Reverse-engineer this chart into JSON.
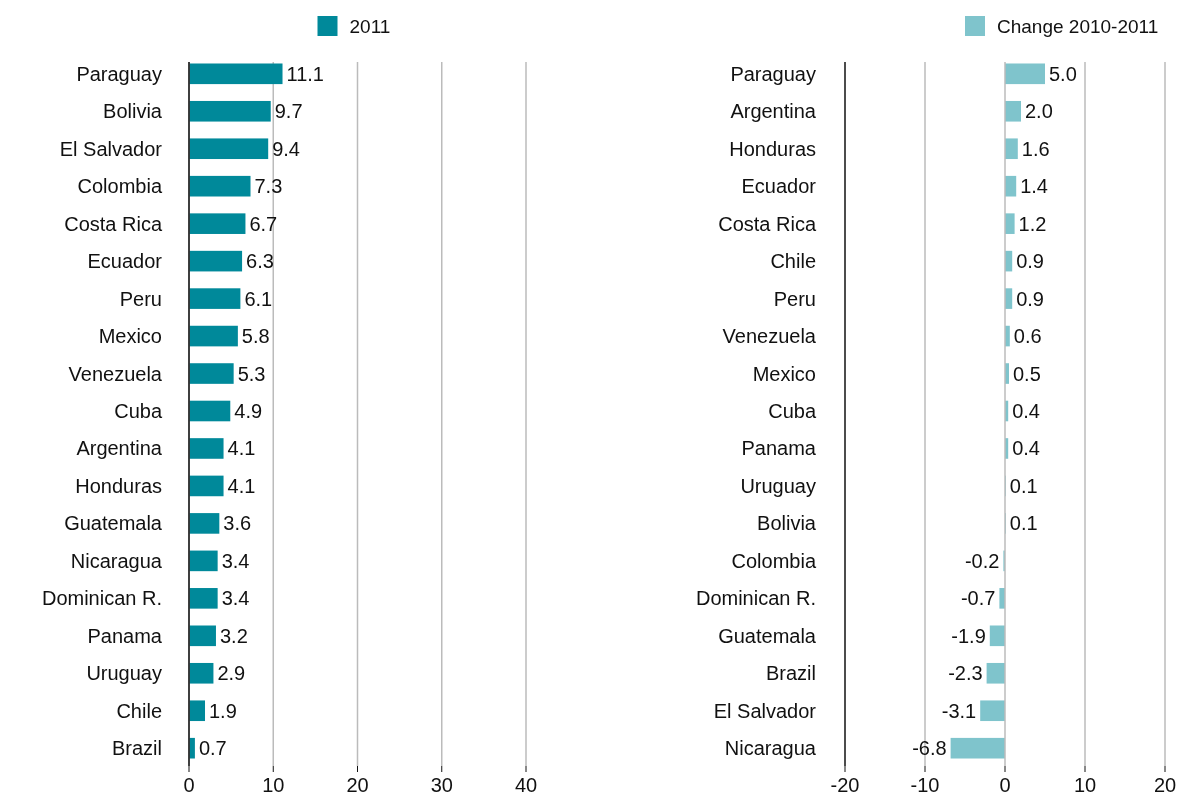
{
  "chart_data": [
    {
      "type": "bar",
      "orientation": "horizontal",
      "categories": [
        "Paraguay",
        "Bolivia",
        "El Salvador",
        "Colombia",
        "Costa Rica",
        "Ecuador",
        "Peru",
        "Mexico",
        "Venezuela",
        "Cuba",
        "Argentina",
        "Honduras",
        "Guatemala",
        "Nicaragua",
        "Dominican R.",
        "Panama",
        "Uruguay",
        "Chile",
        "Brazil"
      ],
      "series": [
        {
          "name": "2011",
          "color": "#00899a",
          "values": [
            11.1,
            9.7,
            9.4,
            7.3,
            6.7,
            6.3,
            6.1,
            5.8,
            5.3,
            4.9,
            4.1,
            4.1,
            3.6,
            3.4,
            3.4,
            3.2,
            2.9,
            1.9,
            0.7
          ]
        }
      ],
      "xlim": [
        0,
        40
      ],
      "xticks": [
        0,
        10,
        20,
        30,
        40
      ],
      "grid": "x",
      "legend": "top",
      "data_labels": true
    },
    {
      "type": "bar",
      "orientation": "horizontal",
      "categories": [
        "Paraguay",
        "Argentina",
        "Honduras",
        "Ecuador",
        "Costa Rica",
        "Chile",
        "Peru",
        "Venezuela",
        "Mexico",
        "Cuba",
        "Panama",
        "Uruguay",
        "Bolivia",
        "Colombia",
        "Dominican R.",
        "Guatemala",
        "Brazil",
        "El Salvador",
        "Nicaragua"
      ],
      "series": [
        {
          "name": "Change 2010-2011",
          "color": "#7fc4cc",
          "values": [
            5.0,
            2.0,
            1.6,
            1.4,
            1.2,
            0.9,
            0.9,
            0.6,
            0.5,
            0.4,
            0.4,
            0.1,
            0.1,
            -0.2,
            -0.7,
            -1.9,
            -2.3,
            -3.1,
            -6.8
          ],
          "value_labels": [
            "5.0",
            "2.0",
            "1.6",
            "1.4",
            "1.2",
            "0.9",
            "0.9",
            "0.6",
            "0.5",
            "0.4",
            "0.4",
            "0.1",
            "0.1",
            "-0.2",
            "-0.7",
            "-1.9",
            "-2.3",
            "-3.1",
            "-6.8"
          ]
        }
      ],
      "xlim": [
        -20,
        20
      ],
      "xticks": [
        -20,
        -10,
        0,
        10,
        20
      ],
      "grid": "x",
      "legend": "top"
    }
  ]
}
